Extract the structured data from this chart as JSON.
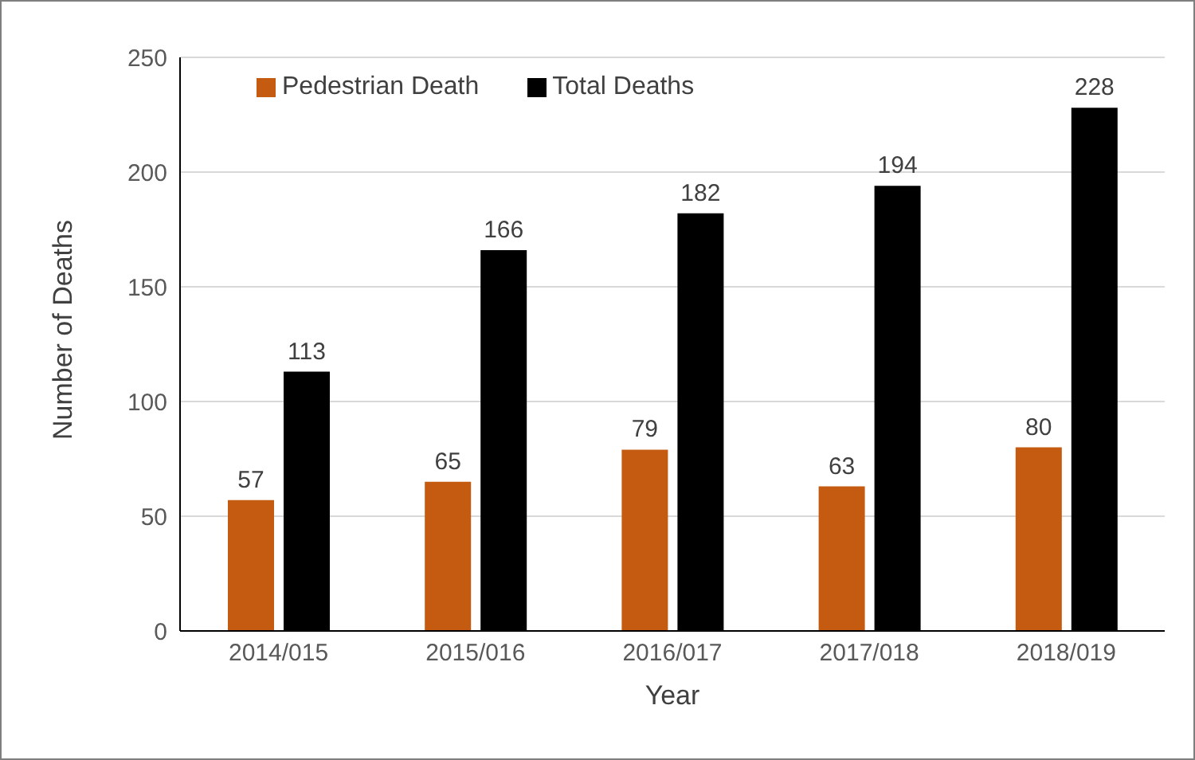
{
  "chart_data": {
    "type": "bar",
    "xlabel": "Year",
    "ylabel": "Number of Deaths",
    "categories": [
      "2014/015",
      "2015/016",
      "2016/017",
      "2017/018",
      "2018/019"
    ],
    "series": [
      {
        "name": "Pedestrian Death",
        "color": "#c55a11",
        "values": [
          57,
          65,
          79,
          63,
          80
        ]
      },
      {
        "name": "Total Deaths",
        "color": "#000000",
        "values": [
          113,
          166,
          182,
          194,
          228
        ]
      }
    ],
    "ylim": [
      0,
      250
    ],
    "yticks": [
      0,
      50,
      100,
      150,
      200,
      250
    ],
    "grid": "y",
    "legend": "top left",
    "data_labels": true
  }
}
